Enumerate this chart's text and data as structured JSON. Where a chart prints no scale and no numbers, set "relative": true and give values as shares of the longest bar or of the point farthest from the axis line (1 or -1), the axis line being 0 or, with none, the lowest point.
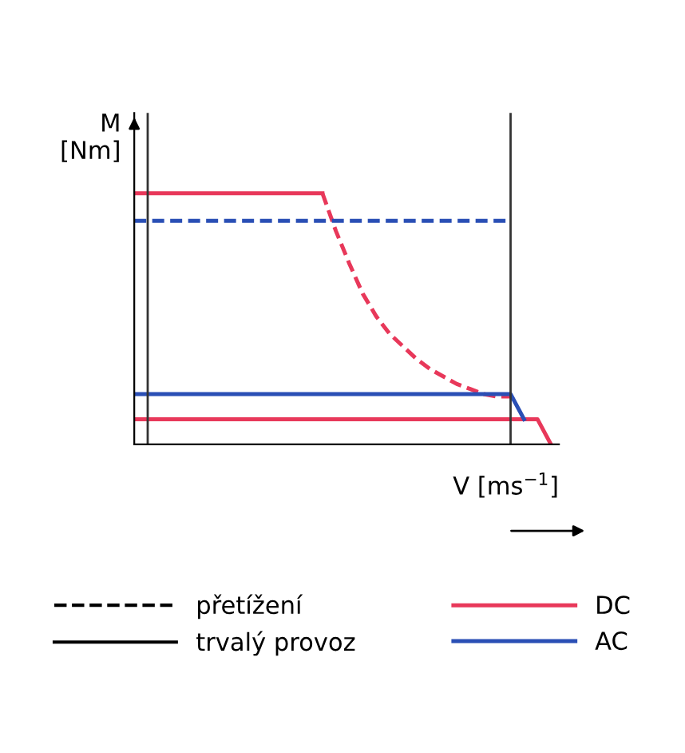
{
  "chart_data": {
    "type": "line",
    "relative": true,
    "xlabel": "V [ms$^{−1}$]",
    "ylabel": "M\n[Nm]",
    "legend": "bottom",
    "categories": [
      null,
      null,
      null,
      null,
      null,
      null,
      null,
      null,
      null,
      null,
      null,
      null,
      null,
      null,
      null,
      null,
      null,
      null,
      null,
      null,
      null,
      null,
      null,
      null,
      null,
      null,
      null,
      null,
      null,
      null,
      null,
      null
    ],
    "series": [
      {
        "name": "DC",
        "color": "#e8385a",
        "line_style": "solid",
        "values": [
          1.0,
          1.0,
          1.0,
          1.0,
          1.0,
          1.0,
          1.0,
          1.0,
          1.0,
          1.0,
          1.0,
          1.0,
          1.0,
          1.0,
          1.0,
          null,
          null,
          null,
          null,
          null,
          null,
          null,
          null,
          null,
          null,
          null,
          null,
          null,
          null,
          null,
          null,
          null
        ]
      },
      {
        "color": "#e8385a",
        "line_style": "dashed",
        "values": [
          null,
          null,
          null,
          null,
          null,
          null,
          null,
          null,
          null,
          null,
          null,
          null,
          null,
          null,
          1.0,
          0.85,
          0.72,
          0.6,
          0.51,
          0.44,
          0.39,
          0.34,
          0.3,
          0.27,
          0.24,
          0.22,
          0.2,
          0.19,
          0.19,
          null,
          null,
          null
        ]
      },
      {
        "color": "#e8385a",
        "line_style": "solid",
        "values": [
          0.1,
          0.1,
          0.1,
          0.1,
          0.1,
          0.1,
          0.1,
          0.1,
          0.1,
          0.1,
          0.1,
          0.1,
          0.1,
          0.1,
          0.1,
          0.1,
          0.1,
          0.1,
          0.1,
          0.1,
          0.1,
          0.1,
          0.1,
          0.1,
          0.1,
          0.1,
          0.1,
          0.1,
          0.1,
          0.1,
          0.1,
          0
        ]
      },
      {
        "name": "AC",
        "color": "#2a4fb5",
        "line_style": "solid",
        "values": [
          0.2,
          0.2,
          0.2,
          0.2,
          0.2,
          0.2,
          0.2,
          0.2,
          0.2,
          0.2,
          0.2,
          0.2,
          0.2,
          0.2,
          0.2,
          0.2,
          0.2,
          0.2,
          0.2,
          0.2,
          0.2,
          0.2,
          0.2,
          0.2,
          0.2,
          0.2,
          0.2,
          0.2,
          0.2,
          0.1,
          null,
          null
        ]
      },
      {
        "color": "#2a4fb5",
        "line_style": "dashed",
        "values": [
          0.89,
          0.89,
          0.89,
          0.89,
          0.89,
          0.89,
          0.89,
          0.89,
          0.89,
          0.89,
          0.89,
          0.89,
          0.89,
          0.89,
          0.89,
          0.89,
          0.89,
          0.89,
          0.89,
          0.89,
          0.89,
          0.89,
          0.89,
          0.89,
          0.89,
          0.89,
          0.89,
          0.89,
          0.89,
          null,
          null,
          null
        ]
      }
    ],
    "annotations": [
      "přetížení",
      "trvalý provoz"
    ]
  }
}
